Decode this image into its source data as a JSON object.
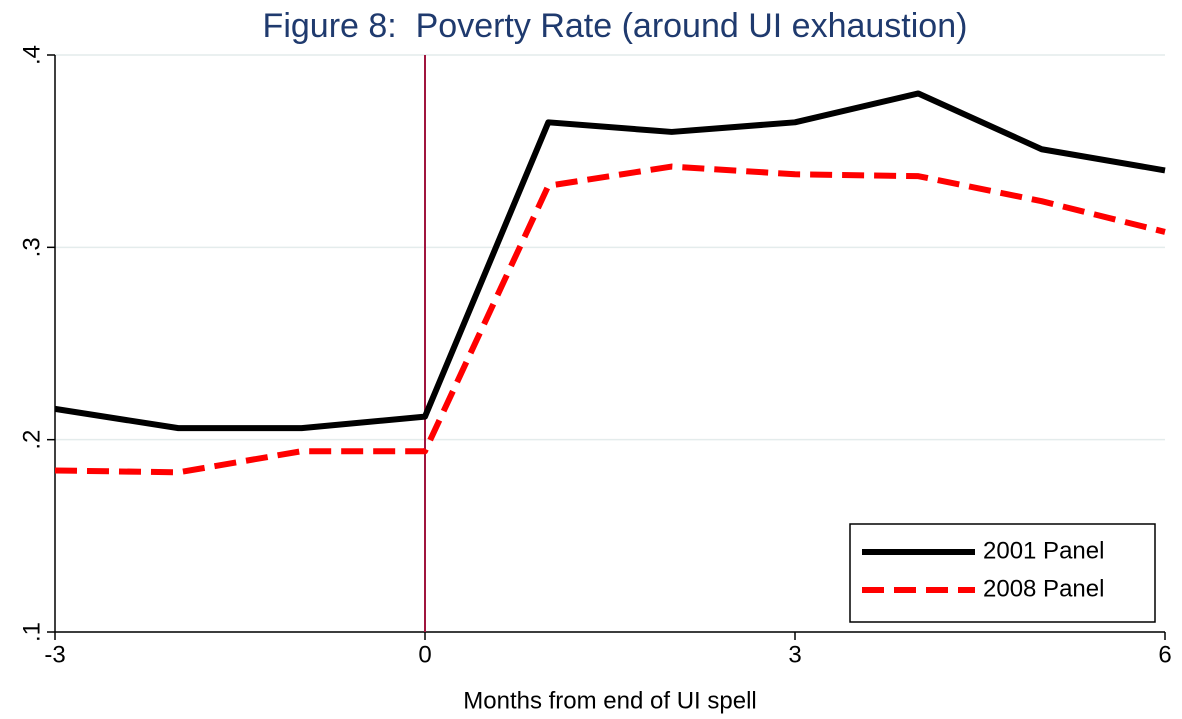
{
  "chart_data": {
    "type": "line",
    "title": "Figure 8:  Poverty Rate (around UI exhaustion)",
    "x_label": "Months from end of UI spell",
    "x": [
      -3,
      -2,
      -1,
      0,
      1,
      2,
      3,
      4,
      5,
      6
    ],
    "series": [
      {
        "name": "2001 Panel",
        "color": "#000000",
        "dash": "solid",
        "values": [
          0.216,
          0.206,
          0.206,
          0.212,
          0.365,
          0.36,
          0.365,
          0.38,
          0.351,
          0.34
        ]
      },
      {
        "name": "2008 Panel",
        "color": "#ff0000",
        "dash": "dashed",
        "values": [
          0.184,
          0.183,
          0.194,
          0.194,
          0.332,
          0.342,
          0.338,
          0.337,
          0.324,
          0.308
        ]
      }
    ],
    "xlim": [
      -3,
      6
    ],
    "xticks": [
      -3,
      0,
      3,
      6
    ],
    "ylim": [
      0.1,
      0.4
    ],
    "yticks": [
      {
        "value": 0.1,
        "label": ".1"
      },
      {
        "value": 0.2,
        "label": ".2"
      },
      {
        "value": 0.3,
        "label": ".3"
      },
      {
        "value": 0.4,
        "label": ".4"
      }
    ],
    "vline": 0,
    "vline_color": "#a0153e",
    "grid": true,
    "legend_position": "lower right"
  }
}
